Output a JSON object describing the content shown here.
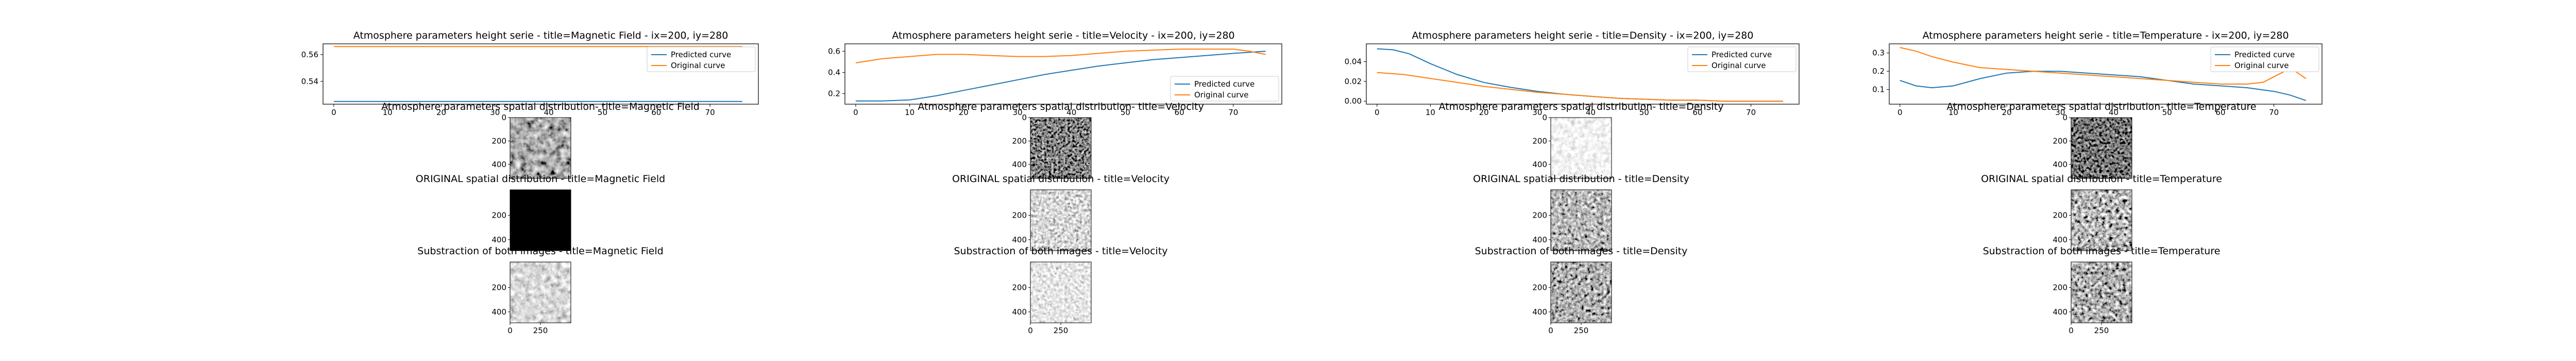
{
  "colors": {
    "predicted": "#1f77b4",
    "original": "#ff7f0e"
  },
  "legend": {
    "predicted": "Predicted curve",
    "original": "Original curve"
  },
  "chart_data": [
    {
      "type": "line",
      "title": "Atmosphere parameters height serie - title=Magnetic Field - ix=200, iy=280",
      "legend_position": "upper right",
      "xlim": [
        -2,
        79
      ],
      "ylim": [
        0.523,
        0.568
      ],
      "xticks": [
        0,
        10,
        20,
        30,
        40,
        50,
        60,
        70
      ],
      "yticks": [
        0.54,
        0.56
      ],
      "ytick_labels": [
        "0.54",
        "0.56"
      ],
      "series": [
        {
          "name": "Predicted curve",
          "x": [
            0,
            10,
            20,
            30,
            40,
            50,
            60,
            70,
            76
          ],
          "y": [
            0.525,
            0.525,
            0.525,
            0.525,
            0.525,
            0.525,
            0.525,
            0.525,
            0.525
          ]
        },
        {
          "name": "Original curve",
          "x": [
            0,
            10,
            20,
            30,
            40,
            50,
            60,
            70,
            76
          ],
          "y": [
            0.566,
            0.566,
            0.566,
            0.566,
            0.566,
            0.566,
            0.566,
            0.566,
            0.566
          ]
        }
      ]
    },
    {
      "type": "line",
      "title": "Atmosphere parameters height serie - title=Velocity - ix=200, iy=280",
      "legend_position": "lower right",
      "xlim": [
        -2,
        79
      ],
      "ylim": [
        0.1,
        0.67
      ],
      "xticks": [
        0,
        10,
        20,
        30,
        40,
        50,
        60,
        70
      ],
      "yticks": [
        0.2,
        0.4,
        0.6
      ],
      "ytick_labels": [
        "0.2",
        "0.4",
        "0.6"
      ],
      "series": [
        {
          "name": "Predicted curve",
          "x": [
            0,
            5,
            10,
            15,
            20,
            25,
            30,
            35,
            40,
            45,
            50,
            55,
            60,
            65,
            70,
            73,
            76
          ],
          "y": [
            0.13,
            0.13,
            0.14,
            0.18,
            0.23,
            0.28,
            0.33,
            0.38,
            0.42,
            0.46,
            0.49,
            0.52,
            0.54,
            0.56,
            0.58,
            0.59,
            0.6
          ]
        },
        {
          "name": "Original curve",
          "x": [
            0,
            5,
            10,
            15,
            20,
            25,
            30,
            35,
            40,
            45,
            50,
            55,
            60,
            65,
            70,
            73,
            76
          ],
          "y": [
            0.49,
            0.53,
            0.55,
            0.57,
            0.57,
            0.56,
            0.55,
            0.55,
            0.56,
            0.58,
            0.6,
            0.61,
            0.62,
            0.62,
            0.62,
            0.6,
            0.57
          ]
        }
      ]
    },
    {
      "type": "line",
      "title": "Atmosphere parameters height serie - title=Density - ix=200, iy=280",
      "legend_position": "upper right",
      "xlim": [
        -2,
        79
      ],
      "ylim": [
        -0.003,
        0.058
      ],
      "xticks": [
        0,
        10,
        20,
        30,
        40,
        50,
        60,
        70
      ],
      "yticks": [
        0.0,
        0.02,
        0.04
      ],
      "ytick_labels": [
        "0.00",
        "0.02",
        "0.04"
      ],
      "series": [
        {
          "name": "Predicted curve",
          "x": [
            0,
            3,
            6,
            10,
            15,
            20,
            25,
            30,
            35,
            40,
            45,
            50,
            55,
            60,
            65,
            70,
            76
          ],
          "y": [
            0.053,
            0.052,
            0.048,
            0.038,
            0.027,
            0.019,
            0.014,
            0.01,
            0.007,
            0.005,
            0.003,
            0.002,
            0.001,
            0.001,
            0.0,
            0.0,
            0.0
          ]
        },
        {
          "name": "Original curve",
          "x": [
            0,
            5,
            10,
            15,
            20,
            25,
            30,
            35,
            40,
            45,
            50,
            55,
            60,
            65,
            70,
            76
          ],
          "y": [
            0.029,
            0.027,
            0.023,
            0.019,
            0.015,
            0.012,
            0.009,
            0.007,
            0.005,
            0.003,
            0.002,
            0.001,
            0.001,
            0.0,
            0.0,
            0.0
          ]
        }
      ]
    },
    {
      "type": "line",
      "title": "Atmosphere parameters height serie - title=Temperature - ix=200, iy=280",
      "legend_position": "upper right",
      "xlim": [
        -2,
        79
      ],
      "ylim": [
        0.02,
        0.35
      ],
      "xticks": [
        0,
        10,
        20,
        30,
        40,
        50,
        60,
        70
      ],
      "yticks": [
        0.1,
        0.2,
        0.3
      ],
      "ytick_labels": [
        "0.1",
        "0.2",
        "0.3"
      ],
      "series": [
        {
          "name": "Predicted curve",
          "x": [
            0,
            3,
            6,
            10,
            15,
            20,
            25,
            30,
            35,
            40,
            45,
            50,
            55,
            60,
            65,
            70,
            73,
            76
          ],
          "y": [
            0.15,
            0.12,
            0.11,
            0.12,
            0.16,
            0.19,
            0.2,
            0.2,
            0.19,
            0.18,
            0.17,
            0.15,
            0.13,
            0.12,
            0.11,
            0.09,
            0.07,
            0.04
          ]
        },
        {
          "name": "Original curve",
          "x": [
            0,
            3,
            6,
            10,
            15,
            20,
            25,
            30,
            35,
            40,
            45,
            50,
            55,
            60,
            65,
            68,
            70,
            72,
            74,
            76
          ],
          "y": [
            0.33,
            0.31,
            0.28,
            0.25,
            0.22,
            0.21,
            0.2,
            0.19,
            0.18,
            0.17,
            0.16,
            0.15,
            0.14,
            0.13,
            0.13,
            0.14,
            0.17,
            0.2,
            0.2,
            0.16
          ]
        }
      ]
    }
  ],
  "image_panels": [
    {
      "column": "Magnetic Field",
      "rows": [
        {
          "title": "Atmosphere parameters spatial distribution- title=Magnetic Field",
          "texture": "mag-predicted",
          "yticks": [
            "0",
            "200",
            "400"
          ]
        },
        {
          "title": "ORIGINAL spatial distribution - title=Magnetic Field",
          "texture": "mag-original",
          "yticks": [
            "200",
            "400"
          ]
        },
        {
          "title": "Substraction of both images - title=Magnetic Field",
          "texture": "mag-diff",
          "yticks": [
            "200",
            "400"
          ],
          "xticks": [
            "0",
            "250"
          ]
        }
      ]
    },
    {
      "column": "Velocity",
      "rows": [
        {
          "title": "Atmosphere parameters spatial distribution- title=Velocity",
          "texture": "vel-predicted",
          "yticks": [
            "0",
            "200",
            "400"
          ]
        },
        {
          "title": "ORIGINAL spatial distribution - title=Velocity",
          "texture": "vel-original",
          "yticks": [
            "200",
            "400"
          ]
        },
        {
          "title": "Substraction of both images - title=Velocity",
          "texture": "vel-diff",
          "yticks": [
            "200",
            "400"
          ],
          "xticks": [
            "0",
            "250"
          ]
        }
      ]
    },
    {
      "column": "Density",
      "rows": [
        {
          "title": "Atmosphere parameters spatial distribution- title=Density",
          "texture": "den-predicted",
          "yticks": [
            "0",
            "200",
            "400"
          ]
        },
        {
          "title": "ORIGINAL spatial distribution - title=Density",
          "texture": "den-original",
          "yticks": [
            "200",
            "400"
          ]
        },
        {
          "title": "Substraction of both images - title=Density",
          "texture": "den-diff",
          "yticks": [
            "200",
            "400"
          ],
          "xticks": [
            "0",
            "250"
          ]
        }
      ]
    },
    {
      "column": "Temperature",
      "rows": [
        {
          "title": "Atmosphere parameters spatial distribution- title=Temperature",
          "texture": "tmp-predicted",
          "yticks": [
            "0",
            "200",
            "400"
          ]
        },
        {
          "title": "ORIGINAL spatial distribution - title=Temperature",
          "texture": "tmp-original",
          "yticks": [
            "200",
            "400"
          ]
        },
        {
          "title": "Substraction of both images - title=Temperature",
          "texture": "tmp-diff",
          "yticks": [
            "200",
            "400"
          ],
          "xticks": [
            "0",
            "250"
          ]
        }
      ]
    }
  ]
}
